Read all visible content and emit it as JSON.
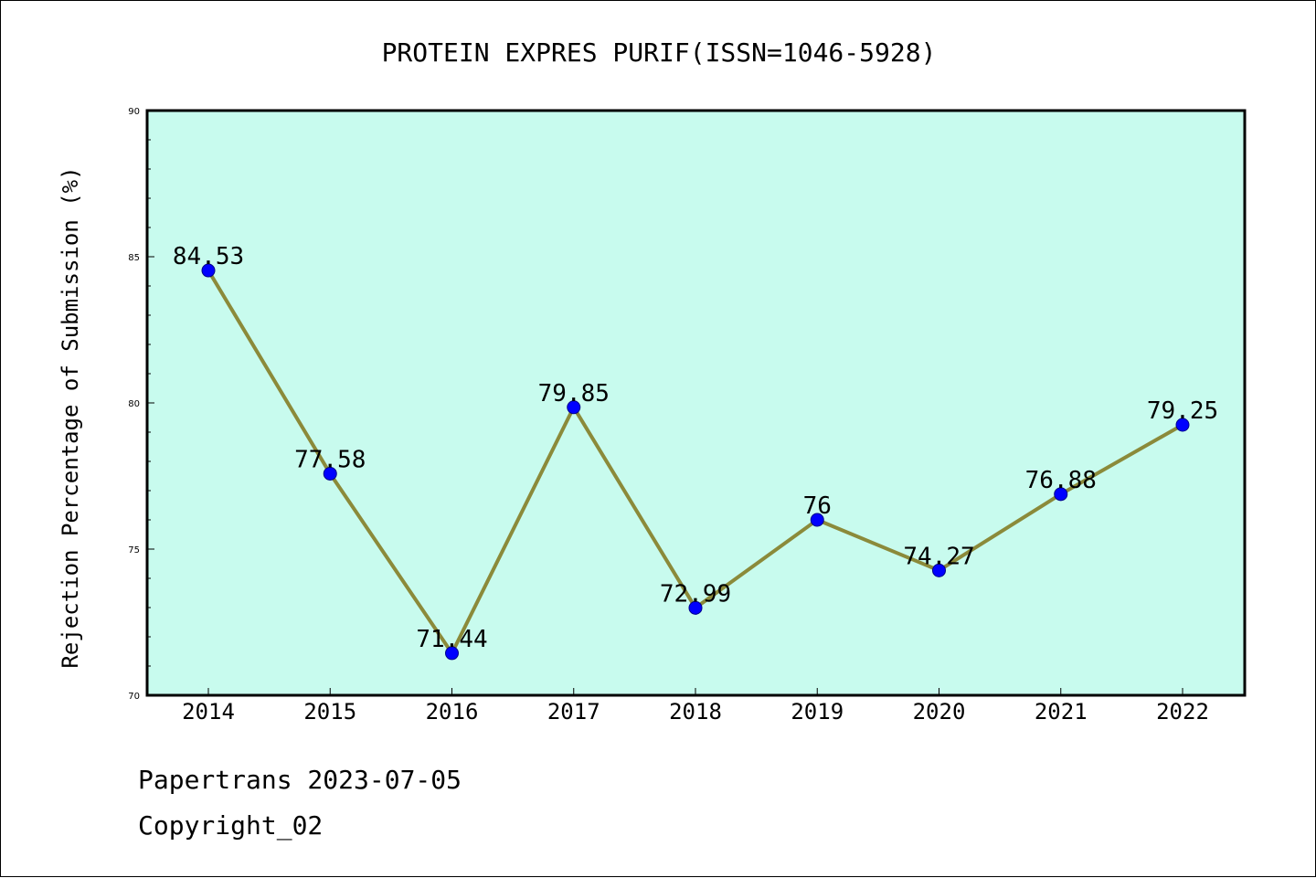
{
  "chart_data": {
    "type": "line",
    "title": "PROTEIN EXPRES PURIF(ISSN=1046-5928)",
    "xlabel": "",
    "ylabel": "Rejection Percentage of Submission (%)",
    "categories": [
      "2014",
      "2015",
      "2016",
      "2017",
      "2018",
      "2019",
      "2020",
      "2021",
      "2022"
    ],
    "values": [
      84.53,
      77.58,
      71.44,
      79.85,
      72.99,
      76,
      74.27,
      76.88,
      79.25
    ],
    "data_labels": [
      "84.53",
      "77.58",
      "71.44",
      "79.85",
      "72.99",
      "76",
      "74.27",
      "76.88",
      "79.25"
    ],
    "ylim": [
      70,
      90
    ],
    "yticks": [
      70,
      75,
      80,
      85,
      90
    ],
    "ytick_labels": [
      "70",
      "75",
      "80",
      "85",
      "90"
    ],
    "grid": false,
    "legend": "none",
    "colors": {
      "plot_background": "#c8fbee",
      "line": "#8b8a3a",
      "marker": "#0000ff",
      "marker_edge": "#00008b"
    }
  },
  "footer": {
    "source": "Papertrans 2023-07-05",
    "copyright": "Copyright_02"
  }
}
